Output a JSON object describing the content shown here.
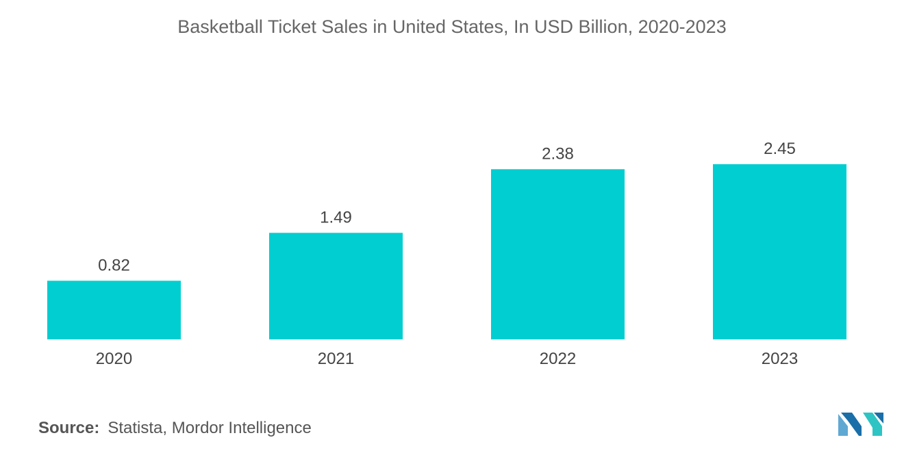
{
  "chart_data": {
    "type": "bar",
    "title": "Basketball Ticket Sales in United States, In USD Billion, 2020-2023",
    "categories": [
      "2020",
      "2021",
      "2022",
      "2023"
    ],
    "values": [
      0.82,
      1.49,
      2.38,
      2.45
    ],
    "value_labels": [
      "0.82",
      "1.49",
      "2.38",
      "2.45"
    ],
    "xlabel": "",
    "ylabel": "",
    "ylim": [
      0,
      2.45
    ],
    "grid": false,
    "bar_color": "#00CED1"
  },
  "source": {
    "label": "Source:",
    "text": "Statista, Mordor Intelligence"
  },
  "logo": {
    "icon": "mordor-intelligence-logo-icon",
    "colors": [
      "#5FA8D3",
      "#2EC4C4",
      "#1A6FA8"
    ]
  }
}
